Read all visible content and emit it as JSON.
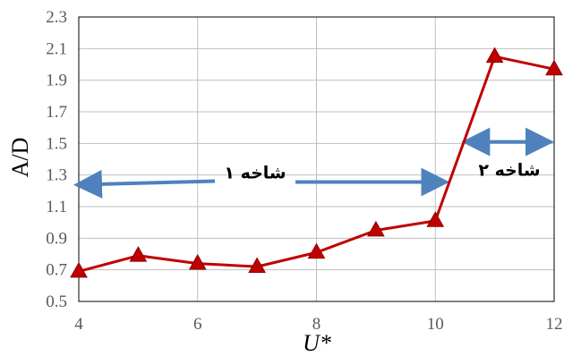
{
  "chart_data": {
    "type": "line",
    "title": "",
    "xlabel": "U*",
    "ylabel": "A/D",
    "xlim": [
      4,
      12
    ],
    "ylim": [
      0.5,
      2.3
    ],
    "x_ticks": [
      "4",
      "6",
      "8",
      "10",
      "12"
    ],
    "y_ticks": [
      "0.5",
      "0.7",
      "0.9",
      "1.1",
      "1.3",
      "1.5",
      "1.7",
      "1.9",
      "2.1",
      "2.3"
    ],
    "grid": "horizontal",
    "series": [
      {
        "x": [
          4,
          5,
          6,
          7,
          8,
          9,
          10,
          11,
          12
        ],
        "y": [
          0.69,
          0.79,
          0.74,
          0.72,
          0.81,
          0.95,
          1.01,
          2.05,
          1.97
        ],
        "color": "#C00000",
        "marker": "triangle"
      }
    ],
    "annotations": [
      {
        "text": "شاخه ۱",
        "arrow": "left-right",
        "x_range": [
          4,
          10
        ],
        "y": 1.25,
        "color": "#4F81BD"
      },
      {
        "text": "شاخه ۲",
        "arrow": "double",
        "x_range": [
          10.8,
          12
        ],
        "y": 1.51,
        "color": "#4F81BD"
      }
    ]
  }
}
